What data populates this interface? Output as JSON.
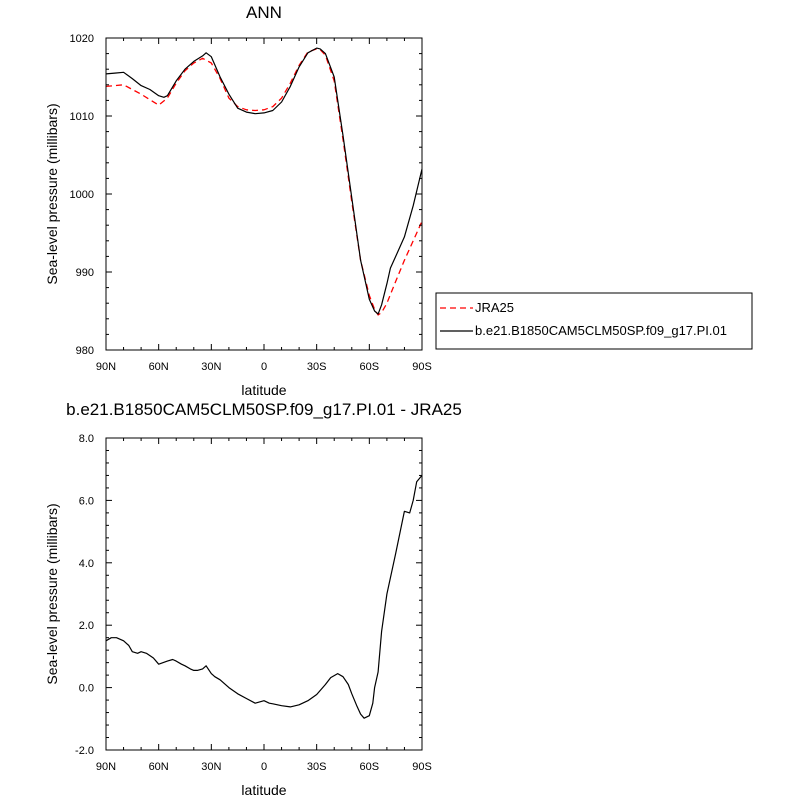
{
  "chart_data": [
    {
      "type": "line",
      "title": "ANN",
      "xlabel": "latitude",
      "ylabel": "Sea-level pressure (millibars)",
      "xticks": [
        "90N",
        "60N",
        "30N",
        "0",
        "30S",
        "60S",
        "90S"
      ],
      "yticks": [
        "980",
        "990",
        "1000",
        "1010",
        "1020"
      ],
      "xlim": [
        90,
        -90
      ],
      "ylim": [
        980,
        1020
      ],
      "legend_position": "right",
      "series": [
        {
          "name": "JRA25",
          "color": "#ff0000",
          "dash": "dashed",
          "x": [
            90,
            80,
            70,
            60,
            55,
            50,
            45,
            40,
            35,
            30,
            25,
            20,
            15,
            10,
            5,
            0,
            -5,
            -10,
            -15,
            -20,
            -25,
            -30,
            -32,
            -35,
            -40,
            -45,
            -50,
            -55,
            -60,
            -63,
            -65,
            -67,
            -70,
            -75,
            -80,
            -85,
            -90
          ],
          "y": [
            1013.8,
            1014.0,
            1012.8,
            1011.4,
            1012.3,
            1014.2,
            1015.8,
            1016.8,
            1017.4,
            1016.8,
            1014.8,
            1012.3,
            1011.2,
            1010.8,
            1010.7,
            1010.8,
            1011.2,
            1012.3,
            1014.2,
            1016.5,
            1018.2,
            1018.6,
            1018.5,
            1017.8,
            1014.5,
            1007.0,
            999.0,
            991.5,
            987.0,
            985.2,
            984.5,
            984.8,
            986.0,
            988.8,
            991.5,
            994.0,
            996.5
          ]
        },
        {
          "name": "b.e21.B1850CAM5CLM50SP.f09_g17.PI.01",
          "color": "#000000",
          "dash": "solid",
          "x": [
            90,
            85,
            80,
            75,
            70,
            65,
            60,
            57,
            55,
            50,
            45,
            40,
            35,
            33,
            30,
            25,
            20,
            15,
            10,
            5,
            0,
            -5,
            -10,
            -15,
            -20,
            -25,
            -30,
            -32,
            -35,
            -40,
            -45,
            -50,
            -55,
            -60,
            -63,
            -65,
            -67,
            -70,
            -72,
            -75,
            -80,
            -85,
            -90
          ],
          "y": [
            1015.4,
            1015.5,
            1015.6,
            1014.8,
            1013.9,
            1013.4,
            1012.6,
            1012.4,
            1012.6,
            1014.5,
            1016.0,
            1017.0,
            1017.7,
            1018.1,
            1017.6,
            1015.0,
            1012.8,
            1011.0,
            1010.5,
            1010.3,
            1010.4,
            1010.7,
            1011.8,
            1013.8,
            1016.3,
            1018.1,
            1018.7,
            1018.6,
            1018.0,
            1015.0,
            1007.5,
            999.5,
            991.5,
            986.5,
            985.0,
            984.6,
            985.8,
            988.5,
            990.5,
            992.0,
            994.5,
            998.5,
            1003.2
          ]
        }
      ]
    },
    {
      "type": "line",
      "title": "b.e21.B1850CAM5CLM50SP.f09_g17.PI.01 - JRA25",
      "xlabel": "latitude",
      "ylabel": "Sea-level pressure (millibars)",
      "xticks": [
        "90N",
        "60N",
        "30N",
        "0",
        "30S",
        "60S",
        "90S"
      ],
      "yticks": [
        "-2.0",
        "0.0",
        "2.0",
        "4.0",
        "6.0",
        "8.0"
      ],
      "xlim": [
        90,
        -90
      ],
      "ylim": [
        -2,
        8
      ],
      "series": [
        {
          "color": "#000000",
          "dash": "solid",
          "x": [
            90,
            87,
            84,
            80,
            77,
            75,
            72,
            70,
            67,
            63,
            60,
            55,
            52,
            50,
            47,
            45,
            42,
            40,
            38,
            35,
            33,
            30,
            28,
            25,
            20,
            15,
            10,
            5,
            0,
            -3,
            -5,
            -10,
            -15,
            -20,
            -25,
            -30,
            -35,
            -38,
            -42,
            -45,
            -48,
            -50,
            -53,
            -55,
            -57,
            -60,
            -62,
            -63,
            -65,
            -67,
            -70,
            -75,
            -80,
            -83,
            -85,
            -87,
            -90
          ],
          "y": [
            1.5,
            1.6,
            1.6,
            1.5,
            1.35,
            1.15,
            1.1,
            1.15,
            1.1,
            0.95,
            0.75,
            0.85,
            0.9,
            0.85,
            0.75,
            0.7,
            0.6,
            0.55,
            0.55,
            0.6,
            0.7,
            0.45,
            0.35,
            0.25,
            0.0,
            -0.2,
            -0.35,
            -0.5,
            -0.42,
            -0.5,
            -0.52,
            -0.58,
            -0.62,
            -0.55,
            -0.42,
            -0.22,
            0.1,
            0.32,
            0.45,
            0.35,
            0.1,
            -0.2,
            -0.6,
            -0.85,
            -0.98,
            -0.9,
            -0.5,
            0.0,
            0.5,
            1.8,
            3.0,
            4.3,
            5.65,
            5.6,
            6.0,
            6.6,
            6.8
          ]
        }
      ]
    }
  ]
}
